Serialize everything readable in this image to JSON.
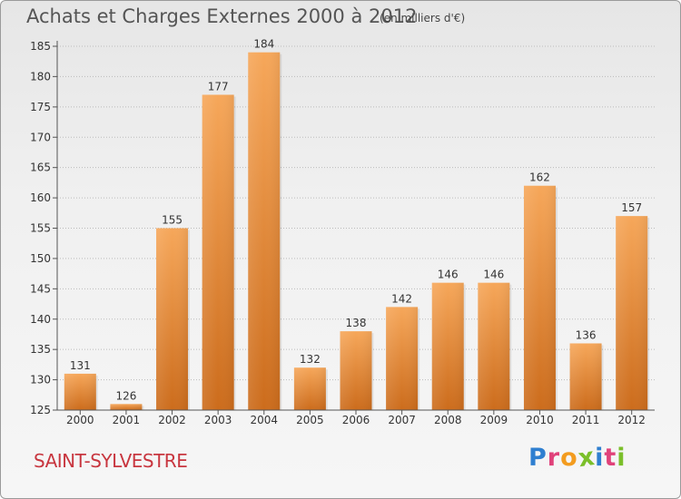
{
  "header": {
    "title": "Achats et Charges Externes 2000 à 2012",
    "subtitle": "(en milliers d'€)"
  },
  "footer": {
    "commune": "SAINT-SYLVESTRE",
    "logo": {
      "text": "Proxiti",
      "letters": [
        {
          "ch": "P",
          "color": "#2f7fd0"
        },
        {
          "ch": "r",
          "color": "#e0427a"
        },
        {
          "ch": "o",
          "color": "#f39c1f"
        },
        {
          "ch": "x",
          "color": "#7bbf2a"
        },
        {
          "ch": "i",
          "color": "#2f7fd0"
        },
        {
          "ch": "t",
          "color": "#e0427a"
        },
        {
          "ch": "i",
          "color": "#7bbf2a"
        }
      ]
    }
  },
  "colors": {
    "bar_light": "#f6a75a",
    "bar_dark": "#cc6c1c",
    "axis": "#555555",
    "grid": "#bbbbbb",
    "commune": "#c8363f"
  },
  "chart_data": {
    "type": "bar",
    "title": "Achats et Charges Externes 2000 à 2012",
    "subtitle": "(en milliers d'€)",
    "categories": [
      "2000",
      "2001",
      "2002",
      "2003",
      "2004",
      "2005",
      "2006",
      "2007",
      "2008",
      "2009",
      "2010",
      "2011",
      "2012"
    ],
    "values": [
      131,
      126,
      155,
      177,
      184,
      132,
      138,
      142,
      146,
      146,
      162,
      136,
      157
    ],
    "ylim": [
      125,
      185
    ],
    "yticks": [
      125,
      130,
      135,
      140,
      145,
      150,
      155,
      160,
      165,
      170,
      175,
      180,
      185
    ],
    "grid": true,
    "data_labels": true
  }
}
